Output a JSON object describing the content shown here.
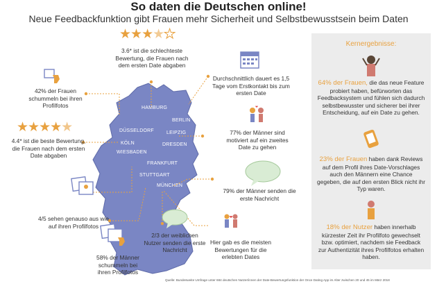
{
  "header": {
    "title": "So daten die Deutschen online!",
    "subtitle": "Neue Feedbackfunktion gibt Frauen mehr Sicherheit und Selbstbewusstsein beim Daten"
  },
  "facts": {
    "worst_rating": "3.6* ist die schlechteste Bewertung, die Frauen nach dem ersten Date abgaben",
    "worst_rating_value": 3.6,
    "first_contact": "Durchschnittlich dauert es 1,5 Tage vom Erstkontakt bis zum ersten Date",
    "women_cheat_photos": "42% der Frauen schummeln bei ihren Profilfotos",
    "best_rating": "4.4* ist die beste Bewertung, die Frauen nach dem ersten Date abgaben",
    "best_rating_value": 4.4,
    "men_motivated": "77% der Männer sind motiviert auf ein zweites Date zu gehen",
    "men_first_message": "79% der Männer senden die erste Nachricht",
    "look_like_photos": "4/5 sehen genauso aus wie auf ihren Profilfotos",
    "men_cheat_photos": "58% der Männer schummeln bei ihren Profilfotos",
    "women_first_message": "2/3 der weiblichen Nutzer senden die erste Nachricht",
    "best_ratings_city": "Hier gab es die meisten Bewertungen für die erlebten Dates"
  },
  "cities": {
    "hamburg": "HAMBURG",
    "berlin": "BERLIN",
    "duesseldorf": "DÜSSELDORF",
    "koeln": "KÖLN",
    "leipzig": "LEIPZIG",
    "dresden": "DRESDEN",
    "wiesbaden": "WIESBADEN",
    "frankfurt": "FRANKFURT",
    "stuttgart": "STUTTGART",
    "muenchen": "MÜNCHEN"
  },
  "panel": {
    "title": "Kernergebnisse:",
    "item1_highlight": "64% der Frauen,",
    "item1_text": "die das neue Feature probiert haben, befürworten das Feedbacksystem und fühlen sich dadurch selbstbewusster und sicherer bei ihrer Entscheidung, auf ein Date zu gehen.",
    "item2_highlight": "23% der Frauen",
    "item2_text": "haben dank Reviews auf dem Profil ihres Date-Vorschlages auch den Männern eine Chance gegeben, die auf den ersten Blick nicht ihr Typ waren.",
    "item3_highlight": "18% der Nutzer",
    "item3_text": "haben innerhalb kürzester Zeit ihr Profilfoto gewechselt bzw. optimiert, nachdem sie Feedback zur Authentizität ihres Profilfotos erhalten haben."
  },
  "source": "Quelle: Bundesweite Umfrage unter 684 deutschen Nutzer/innen der Date-Bewertungsfunktion der Once Dating App im Alter zwischen 20 und 45 im März 2018",
  "colors": {
    "accent": "#e8a13f",
    "map": "#7a86c4",
    "dot": "#e8a13f"
  }
}
